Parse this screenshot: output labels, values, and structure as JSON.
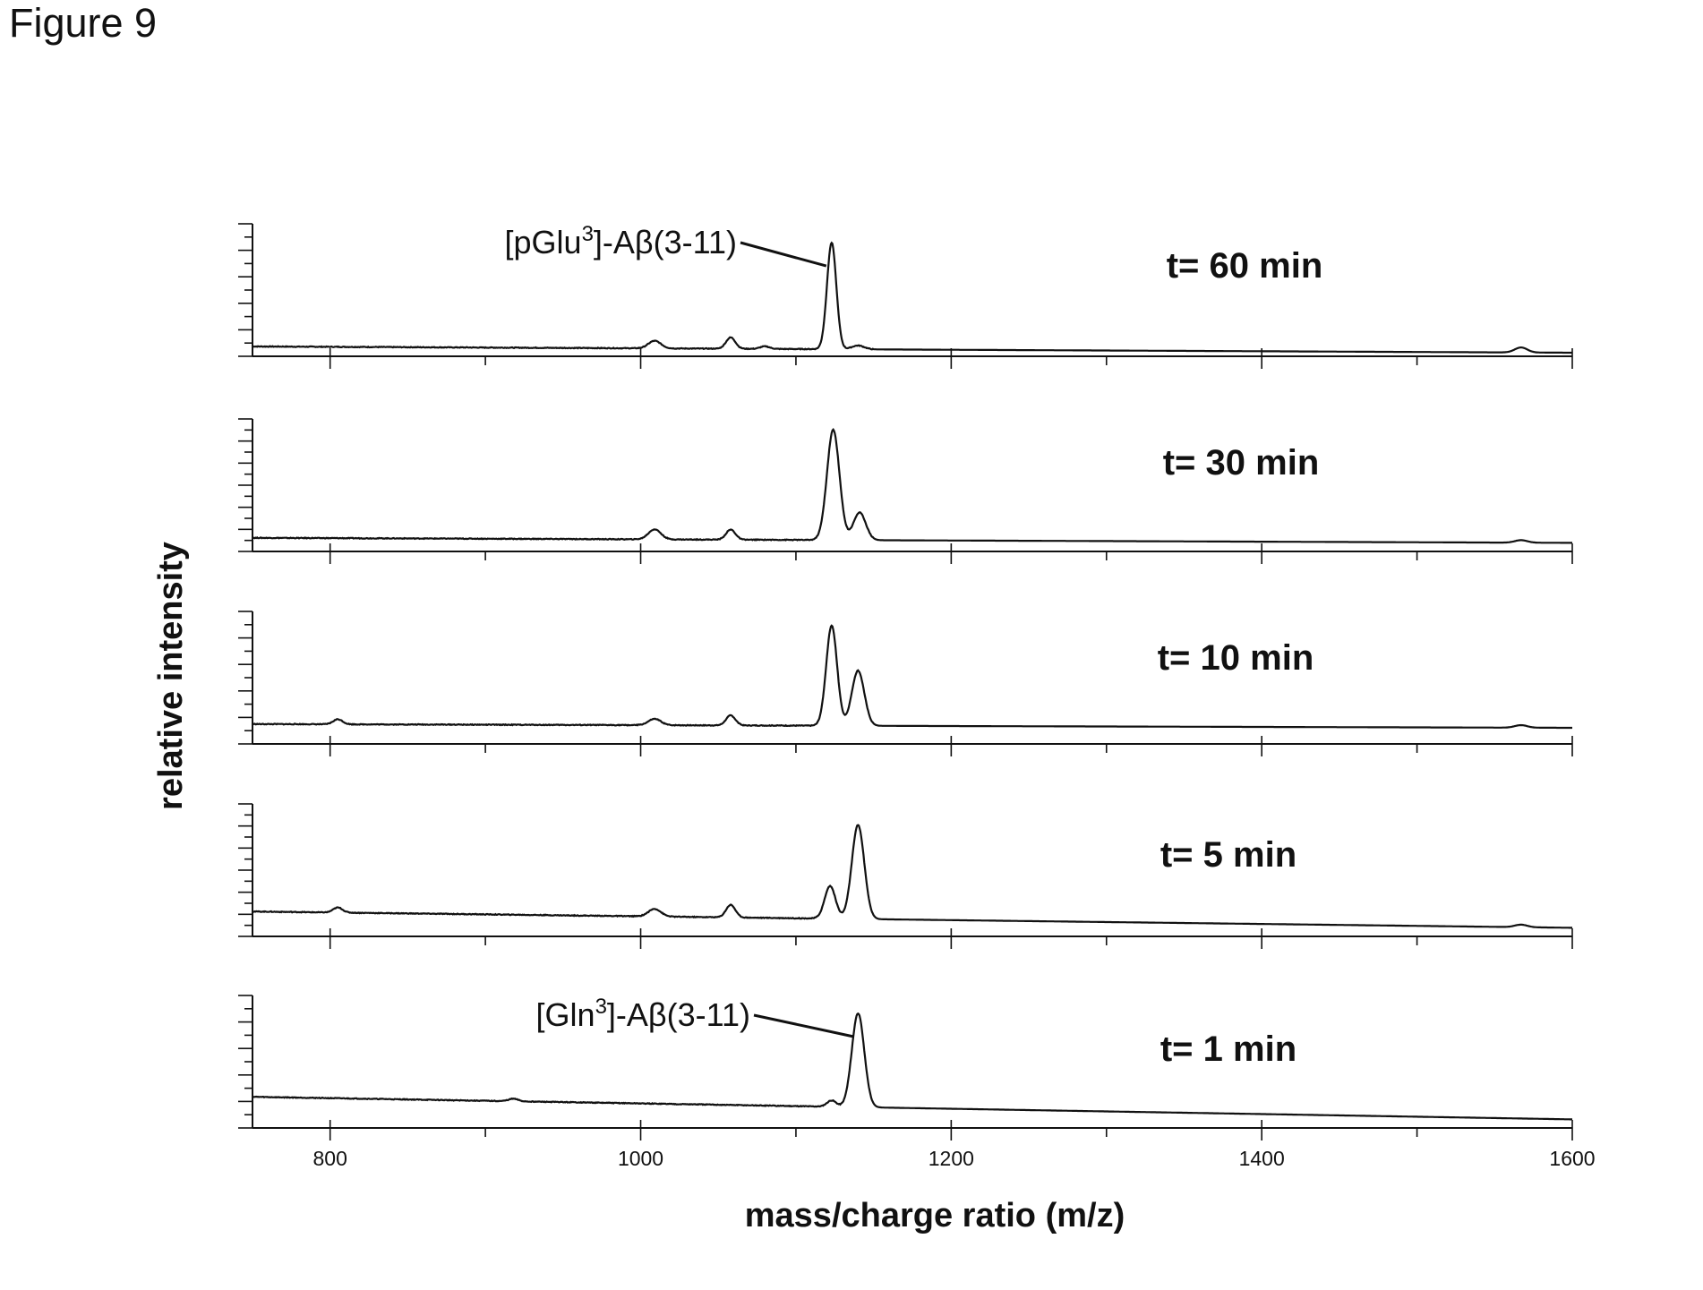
{
  "figure_label": "Figure 9",
  "chart_data": {
    "type": "line",
    "xlabel": "mass/charge ratio (m/z)",
    "ylabel": "relative intensity",
    "xlim": [
      750,
      1600
    ],
    "x_ticks": [
      800,
      1000,
      1200,
      1400,
      1600
    ],
    "x_tick_labels": [
      "800",
      "1000",
      "1200",
      "1400",
      "1600"
    ],
    "grid": false,
    "panels": [
      {
        "time_label": "t= 60 min",
        "baseline": [
          [
            750,
            0.05
          ],
          [
            1600,
            0.0
          ]
        ],
        "peaks": [
          {
            "x": 1009,
            "height": 0.06,
            "width": 4
          },
          {
            "x": 1058,
            "height": 0.09,
            "width": 3
          },
          {
            "x": 1080,
            "height": 0.02,
            "width": 3
          },
          {
            "x": 1123,
            "height": 0.85,
            "width": 3
          },
          {
            "x": 1140,
            "height": 0.03,
            "width": 4
          },
          {
            "x": 1567,
            "height": 0.04,
            "width": 4
          }
        ],
        "annotation": {
          "name": "[pGlu",
          "sup": "3",
          "rest": "]-Aβ(3-11)",
          "peak_x": 1123
        }
      },
      {
        "time_label": "t= 30 min",
        "baseline": [
          [
            750,
            0.08
          ],
          [
            1600,
            0.04
          ]
        ],
        "peaks": [
          {
            "x": 1009,
            "height": 0.08,
            "width": 4
          },
          {
            "x": 1058,
            "height": 0.08,
            "width": 3
          },
          {
            "x": 1124,
            "height": 0.88,
            "width": 4
          },
          {
            "x": 1141,
            "height": 0.22,
            "width": 4
          },
          {
            "x": 1567,
            "height": 0.02,
            "width": 4
          }
        ]
      },
      {
        "time_label": "t= 10 min",
        "baseline": [
          [
            750,
            0.13
          ],
          [
            1600,
            0.1
          ]
        ],
        "peaks": [
          {
            "x": 805,
            "height": 0.04,
            "width": 3
          },
          {
            "x": 1009,
            "height": 0.05,
            "width": 4
          },
          {
            "x": 1058,
            "height": 0.08,
            "width": 3
          },
          {
            "x": 1123,
            "height": 0.8,
            "width": 3.5
          },
          {
            "x": 1140,
            "height": 0.44,
            "width": 4
          },
          {
            "x": 1567,
            "height": 0.02,
            "width": 4
          }
        ]
      },
      {
        "time_label": "t= 5 min",
        "baseline": [
          [
            750,
            0.17
          ],
          [
            1600,
            0.04
          ]
        ],
        "peaks": [
          {
            "x": 805,
            "height": 0.04,
            "width": 3
          },
          {
            "x": 1009,
            "height": 0.06,
            "width": 4
          },
          {
            "x": 1058,
            "height": 0.1,
            "width": 3
          },
          {
            "x": 1122,
            "height": 0.26,
            "width": 3.5
          },
          {
            "x": 1140,
            "height": 0.75,
            "width": 4
          },
          {
            "x": 1567,
            "height": 0.02,
            "width": 4
          }
        ]
      },
      {
        "time_label": "t= 1 min",
        "baseline": [
          [
            750,
            0.22
          ],
          [
            1600,
            0.04
          ]
        ],
        "peaks": [
          {
            "x": 918,
            "height": 0.02,
            "width": 3
          },
          {
            "x": 1123,
            "height": 0.05,
            "width": 3
          },
          {
            "x": 1140,
            "height": 0.75,
            "width": 4
          }
        ],
        "annotation": {
          "name": "[Gln",
          "sup": "3",
          "rest": "]-Aβ(3-11)",
          "peak_x": 1140
        }
      }
    ]
  }
}
